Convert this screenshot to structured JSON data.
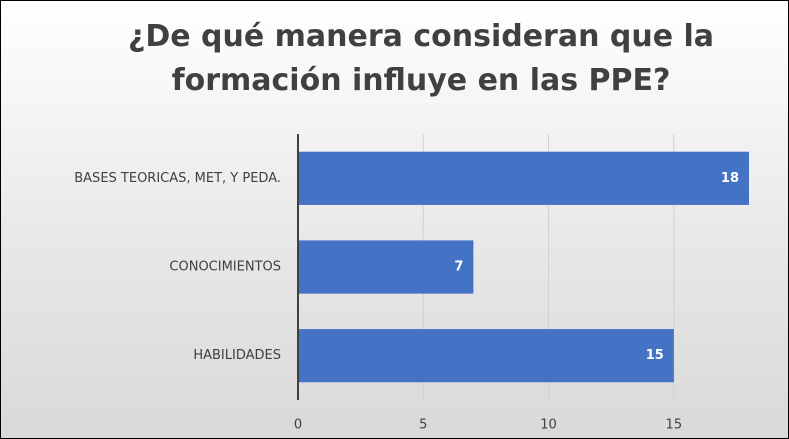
{
  "chart_data": {
    "type": "bar",
    "orientation": "horizontal",
    "title": "¿De qué manera consideran que la formación influye en las PPE?",
    "categories": [
      "BASES TEORICAS, MET, Y PEDA.",
      "CONOCIMIENTOS",
      "HABILIDADES"
    ],
    "values": [
      18,
      7,
      15
    ],
    "color": "#4472c4",
    "xlim": [
      0,
      18
    ],
    "xticks": [
      0,
      5,
      10,
      15
    ],
    "grid": true
  }
}
